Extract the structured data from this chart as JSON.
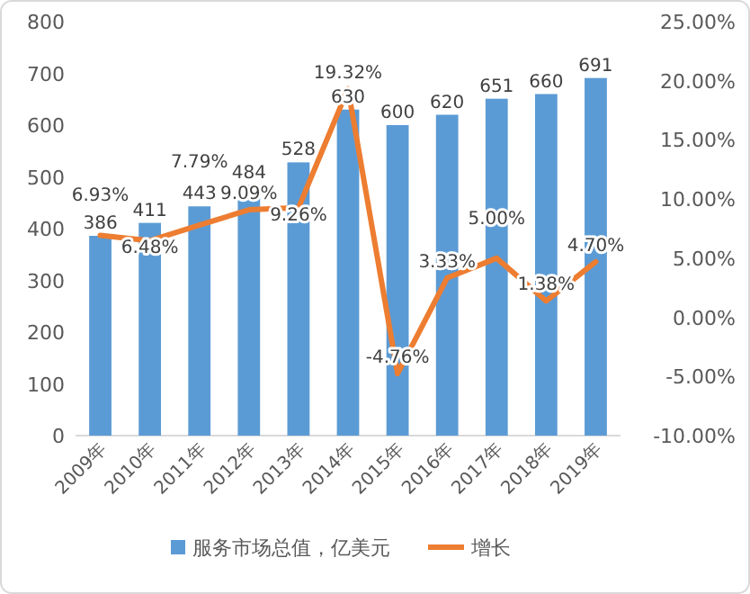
{
  "chart_data": {
    "type": "bar",
    "categories": [
      "2009年",
      "2010年",
      "2011年",
      "2012年",
      "2013年",
      "2014年",
      "2015年",
      "2016年",
      "2017年",
      "2018年",
      "2019年"
    ],
    "series": [
      {
        "name": "服务市场总值，亿美元",
        "color": "#5b9bd5",
        "values": [
          386,
          411,
          443,
          484,
          528,
          630,
          600,
          620,
          651,
          660,
          691
        ],
        "data_labels": true
      },
      {
        "name": "增长",
        "type": "line",
        "axis": "y2",
        "color": "#ed7d31",
        "values": [
          6.93,
          6.48,
          7.79,
          9.09,
          9.26,
          19.32,
          -4.76,
          3.33,
          5.0,
          1.38,
          4.7
        ],
        "value_labels": [
          "6.93%",
          "6.48%",
          "7.79%",
          "9.09%",
          "9.26%",
          "19.32%",
          "-4.76%",
          "3.33%",
          "5.00%",
          "1.38%",
          "4.70%"
        ]
      }
    ],
    "ylim": [
      0,
      800
    ],
    "yticks": [
      0,
      100,
      200,
      300,
      400,
      500,
      600,
      700,
      800
    ],
    "y2lim": [
      -10,
      25
    ],
    "y2ticks": [
      {
        "value": -10,
        "label": "-10.00%"
      },
      {
        "value": -5,
        "label": "-5.00%"
      },
      {
        "value": 0,
        "label": "0.00%"
      },
      {
        "value": 5,
        "label": "5.00%"
      },
      {
        "value": 10,
        "label": "10.00%"
      },
      {
        "value": 15,
        "label": "15.00%"
      },
      {
        "value": 20,
        "label": "20.00%"
      },
      {
        "value": 25,
        "label": "25.00%"
      }
    ],
    "grid": false,
    "legend": "bottom",
    "marker": "none",
    "line_style": "solid"
  }
}
